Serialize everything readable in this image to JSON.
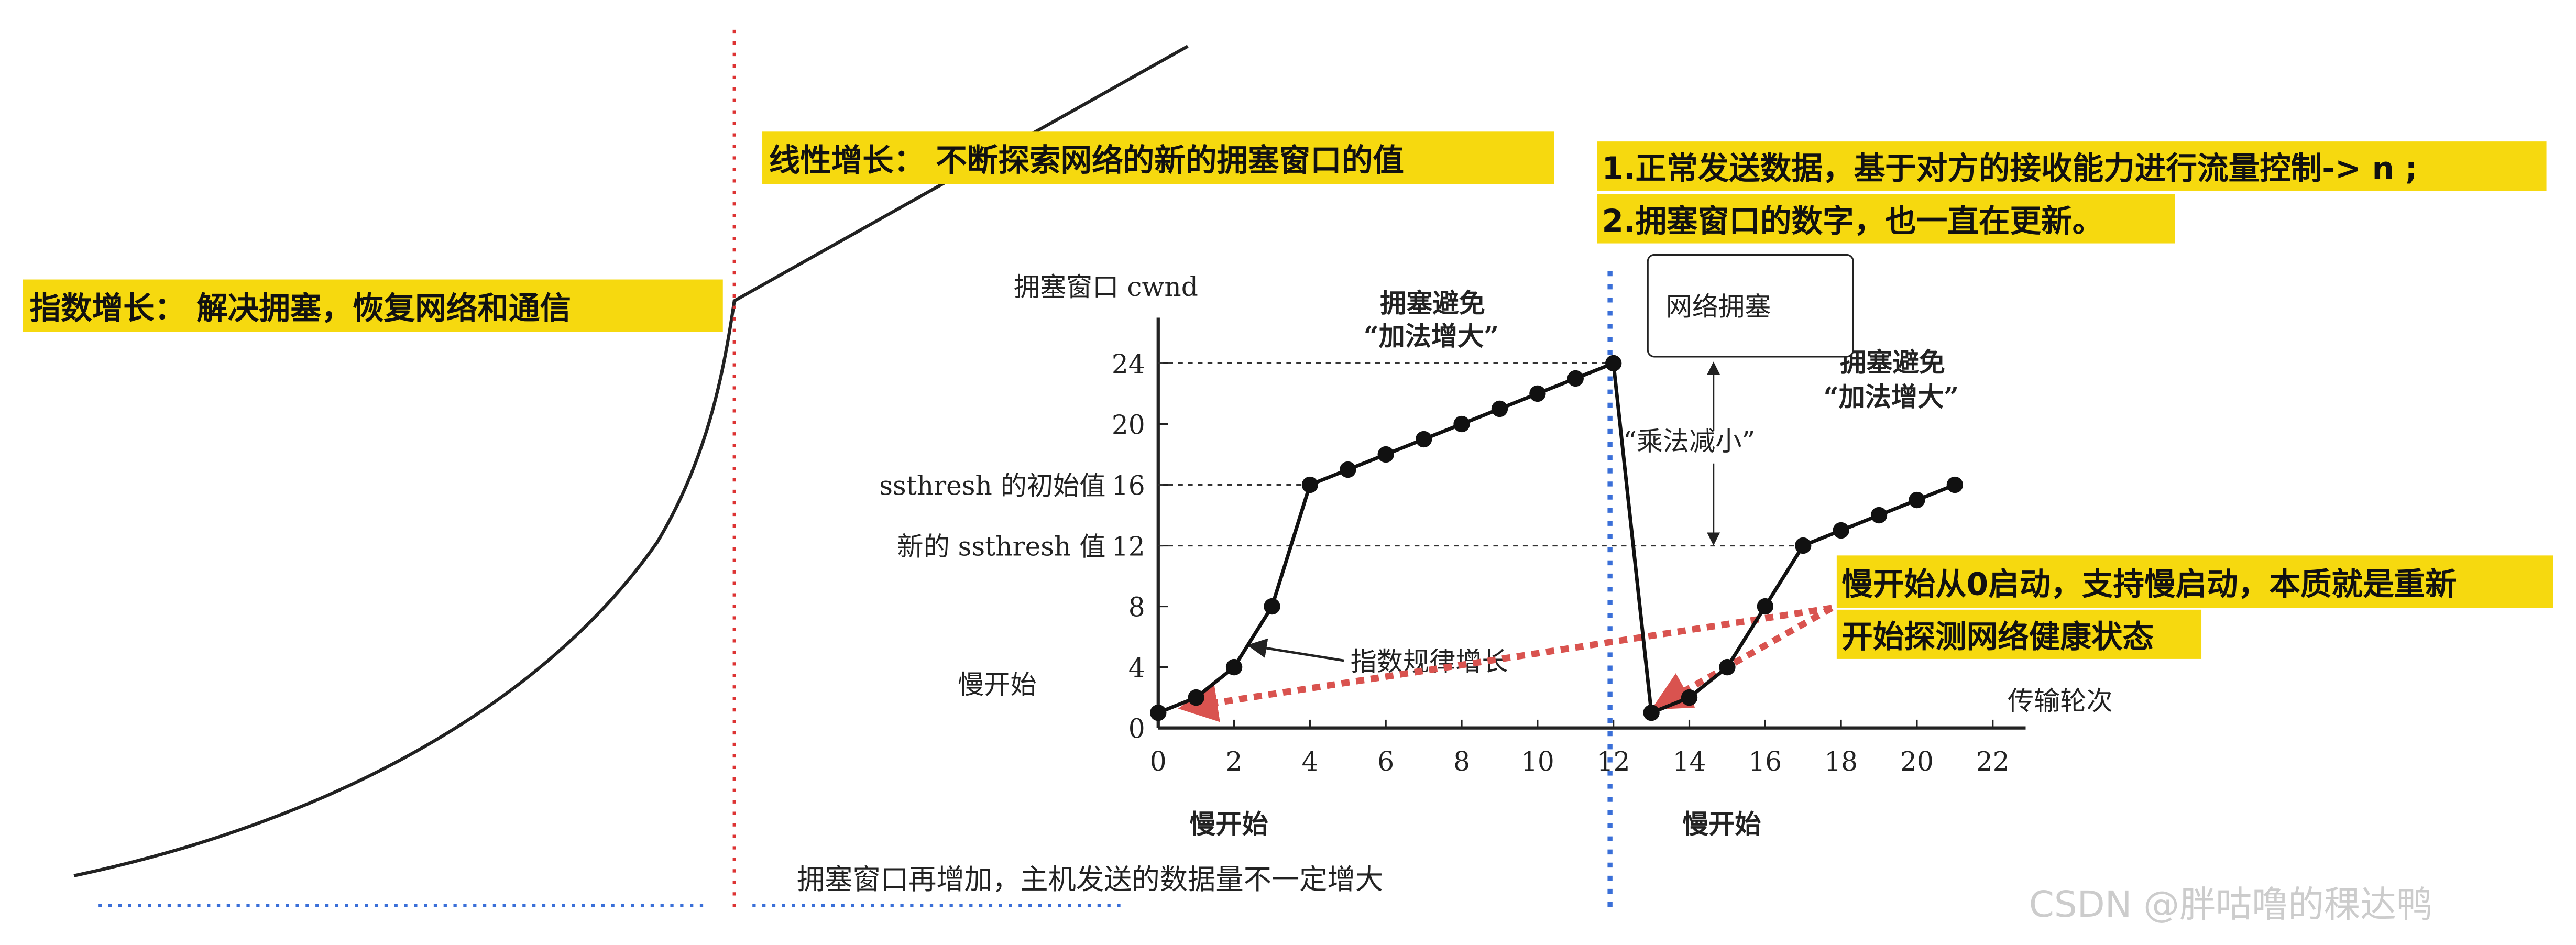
{
  "chart_data": {
    "type": "line",
    "y_label": "拥塞窗口 cwnd",
    "x_label": "传输轮次",
    "x": [
      0,
      1,
      2,
      3,
      4,
      5,
      6,
      7,
      8,
      9,
      10,
      11,
      12,
      13,
      14,
      15,
      16,
      17,
      18,
      19,
      20,
      21
    ],
    "series": [
      {
        "color": "#111111",
        "values": [
          1,
          2,
          4,
          8,
          16,
          17,
          18,
          19,
          20,
          21,
          22,
          23,
          24,
          1,
          2,
          4,
          8,
          12,
          13,
          14,
          15,
          16
        ]
      }
    ],
    "xlim": [
      0,
      22
    ],
    "xticks": [
      0,
      2,
      4,
      6,
      8,
      10,
      12,
      14,
      16,
      18,
      20,
      22
    ],
    "ylim": [
      0,
      27
    ],
    "yticks": [
      0,
      4,
      8,
      12,
      16,
      20,
      24
    ],
    "ytick_notes": [
      {
        "value": 16,
        "text": "ssthresh 的初始值"
      },
      {
        "value": 12,
        "text": "新的 ssthresh 值"
      }
    ],
    "congestion": {
      "y": 24,
      "label": "网络拥塞"
    },
    "annotations": {
      "slow_start_left": "慢开始",
      "slow_start_axis_1": "慢开始",
      "slow_start_axis_2": "慢开始",
      "avoid_1": [
        "拥塞避免",
        "“加法增大”"
      ],
      "avoid_2": [
        "拥塞避免",
        "“加法增大”"
      ],
      "multiplicative": "“乘法减小”",
      "exponential": "指数规律增长"
    }
  },
  "notes": {
    "exponential": "指数增长： 解决拥塞，恢复网络和通信",
    "linear": "线性增长： 不断探索网络的新的拥塞窗口的值",
    "right": [
      "1.正常发送数据，基于对方的接收能力进行流量控制-> n ;",
      "2.拥塞窗口的数字，也一直在更新。"
    ],
    "restart": [
      "慢开始从0启动，支持慢启动，本质就是重新",
      "开始探测网络健康状态"
    ],
    "caption": "拥塞窗口再增加，主机发送的数据量不一定增大",
    "watermark": "CSDN @胖咕噜的稞达鸭"
  }
}
